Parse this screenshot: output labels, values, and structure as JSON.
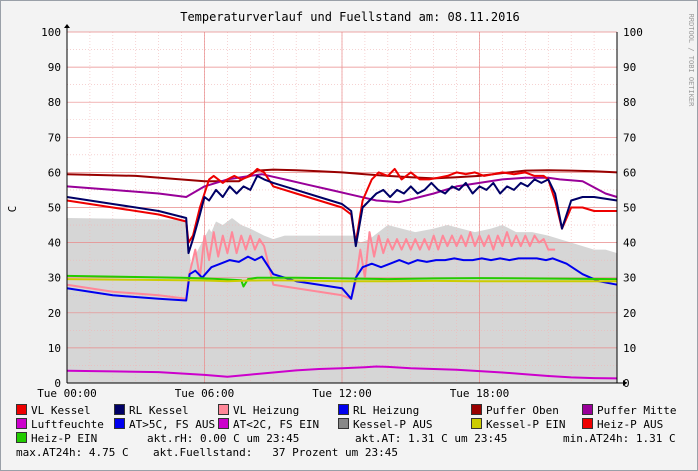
{
  "chart_data": {
    "type": "line",
    "title": "Temperaturverlauf und Fuellstand am: 08.11.2016",
    "ylabel": "C",
    "watermark": "RRDTOOL / TOBI OETIKER",
    "x_range_hours": [
      0,
      24
    ],
    "ylim": [
      0,
      100
    ],
    "y_ticks": [
      0,
      10,
      20,
      30,
      40,
      50,
      60,
      70,
      80,
      90,
      100
    ],
    "x_ticks": [
      {
        "hour": 0,
        "label": "Tue 00:00"
      },
      {
        "hour": 6,
        "label": "Tue 06:00"
      },
      {
        "hour": 12,
        "label": "Tue 12:00"
      },
      {
        "hour": 18,
        "label": "Tue 18:00"
      }
    ],
    "grid": true,
    "legend_position": "bottom",
    "series": [
      {
        "name": "Fuellstand (Prozent)",
        "color": "#d6d6d6",
        "style": "area",
        "x": [
          0,
          5.2,
          5.4,
          6.2,
          6.3,
          6.5,
          6.8,
          7.2,
          7.6,
          8.0,
          8.3,
          8.6,
          9.0,
          9.5,
          10,
          10.5,
          11,
          11.6,
          12.3,
          12.5,
          12.8,
          13.2,
          14,
          14.6,
          15.2,
          16,
          16.6,
          17.2,
          17.8,
          18.5,
          19,
          19.6,
          20.3,
          21,
          21.5,
          22,
          22.5,
          23,
          23.5,
          24
        ],
        "y": [
          47,
          46.5,
          34,
          44,
          43,
          46,
          45,
          47,
          45,
          44,
          43,
          42,
          41,
          42,
          42,
          42,
          42,
          42,
          42,
          42,
          40,
          41,
          45,
          44,
          43,
          44,
          45,
          44,
          43,
          44,
          45,
          43,
          43,
          42,
          41,
          40,
          39,
          38,
          38,
          37
        ]
      },
      {
        "name": "Puffer Oben",
        "color": "#990000",
        "x": [
          0,
          3,
          6,
          7.5,
          8.3,
          9,
          10,
          11,
          12,
          13,
          14,
          15,
          16,
          17,
          18,
          19,
          20,
          21,
          22,
          23,
          24
        ],
        "y": [
          59.5,
          59,
          57.5,
          57.5,
          60.5,
          60.8,
          60.6,
          60.3,
          60,
          59.5,
          59,
          58.6,
          58.3,
          58.6,
          59,
          59.8,
          60.5,
          60.6,
          60.5,
          60.3,
          60
        ]
      },
      {
        "name": "Puffer Mitte",
        "color": "#990099",
        "x": [
          0,
          2,
          4,
          5.2,
          6,
          7,
          8,
          8.5,
          9.5,
          10.5,
          11.5,
          12.5,
          13.5,
          14.5,
          16,
          17,
          18,
          19,
          20,
          21,
          21.5,
          22.5,
          23.5,
          24
        ],
        "y": [
          56,
          55,
          54,
          53,
          56,
          58,
          59,
          59.5,
          58,
          56.5,
          55,
          53.5,
          52,
          51.5,
          54,
          56,
          57,
          58,
          58.5,
          58.5,
          58,
          57.5,
          54,
          53
        ]
      },
      {
        "name": "VL Kessel",
        "color": "#ee0000",
        "x": [
          0,
          2,
          4,
          5.2,
          5.3,
          5.5,
          5.8,
          6.2,
          6.4,
          6.8,
          7.0,
          7.3,
          7.6,
          8.0,
          8.3,
          8.6,
          9,
          10,
          11,
          12,
          12.4,
          12.6,
          12.9,
          13.3,
          13.6,
          14,
          14.3,
          14.6,
          15,
          15.4,
          15.8,
          16.2,
          16.6,
          17,
          17.4,
          17.8,
          18.2,
          18.6,
          19,
          19.5,
          20,
          20.4,
          20.8,
          21.0,
          21.3,
          21.6,
          22,
          22.5,
          23,
          24
        ],
        "y": [
          52,
          50,
          48,
          46,
          40,
          42,
          50,
          58,
          59,
          57,
          58,
          59,
          58,
          59,
          61,
          60,
          56,
          54,
          52,
          50,
          48,
          40,
          52,
          58,
          60,
          59,
          61,
          58,
          60,
          58,
          58,
          58.5,
          59,
          60,
          59.5,
          60,
          59,
          59.5,
          60,
          59.5,
          60,
          59,
          59,
          58,
          52,
          44,
          50,
          50,
          49,
          49
        ]
      },
      {
        "name": "RL Kessel",
        "color": "#000066",
        "x": [
          0,
          2,
          4,
          5.2,
          5.3,
          5.5,
          5.8,
          6.0,
          6.2,
          6.5,
          6.8,
          7.1,
          7.4,
          7.7,
          8.0,
          8.3,
          8.6,
          9,
          10,
          11,
          12,
          12.4,
          12.6,
          12.9,
          13.2,
          13.5,
          13.8,
          14.1,
          14.4,
          14.7,
          15.0,
          15.3,
          15.6,
          15.9,
          16.2,
          16.5,
          16.8,
          17.1,
          17.4,
          17.7,
          18.0,
          18.3,
          18.6,
          18.9,
          19.2,
          19.5,
          19.8,
          20.1,
          20.4,
          20.7,
          21.0,
          21.3,
          21.6,
          22,
          22.5,
          23,
          24
        ],
        "y": [
          53,
          51,
          49,
          47,
          37,
          41,
          48,
          53,
          52,
          55,
          53,
          56,
          54,
          56,
          55,
          59,
          58,
          57,
          55,
          53,
          51,
          49,
          39,
          50,
          52,
          54,
          55,
          53,
          55,
          54,
          56,
          54,
          55,
          57,
          55,
          54,
          56,
          55,
          57,
          54,
          56,
          55,
          57,
          54,
          56,
          55,
          57,
          56,
          58,
          57,
          58,
          54,
          44,
          52,
          53,
          53,
          52
        ]
      },
      {
        "name": "VL Heizung",
        "color": "#ff8899",
        "x": [
          0,
          2,
          4,
          5.2,
          5.3,
          5.6,
          5.8,
          6.0,
          6.2,
          6.4,
          6.6,
          6.8,
          7.0,
          7.2,
          7.4,
          7.6,
          7.8,
          8.0,
          8.2,
          8.4,
          8.6,
          9,
          10,
          11,
          12,
          12.4,
          12.6,
          12.8,
          13.0,
          13.2,
          13.4,
          13.6,
          13.8,
          14.0,
          14.2,
          14.4,
          14.6,
          14.8,
          15.0,
          15.2,
          15.4,
          15.6,
          15.8,
          16.0,
          16.2,
          16.4,
          16.6,
          16.8,
          17.0,
          17.2,
          17.4,
          17.6,
          17.8,
          18.0,
          18.2,
          18.4,
          18.6,
          18.8,
          19.0,
          19.2,
          19.4,
          19.6,
          19.8,
          20.0,
          20.2,
          20.4,
          20.6,
          20.8,
          21.0,
          21.3
        ],
        "y": [
          28,
          26,
          25,
          24,
          30,
          38,
          30,
          42,
          35,
          43,
          36,
          42,
          37,
          43,
          37,
          42,
          38,
          42,
          38,
          41,
          39,
          28,
          27,
          26,
          25,
          24,
          29,
          38,
          30,
          43,
          36,
          42,
          37,
          41,
          38,
          41,
          38,
          41,
          38,
          41,
          38,
          41,
          38,
          42,
          38,
          42,
          39,
          42,
          39,
          42,
          39,
          43,
          39,
          42,
          39,
          42,
          38,
          42,
          39,
          43,
          39,
          42,
          39,
          42,
          39,
          42,
          40,
          41,
          38,
          38
        ]
      },
      {
        "name": "RL Heizung",
        "color": "#0000ee",
        "x": [
          0,
          2,
          4,
          5.2,
          5.35,
          5.6,
          5.9,
          6.3,
          6.7,
          7.1,
          7.5,
          7.9,
          8.2,
          8.5,
          9,
          10,
          11,
          12,
          12.4,
          12.6,
          12.9,
          13.3,
          13.7,
          14.1,
          14.5,
          14.9,
          15.3,
          15.7,
          16.1,
          16.5,
          16.9,
          17.3,
          17.7,
          18.1,
          18.5,
          18.9,
          19.3,
          19.7,
          20.1,
          20.5,
          20.9,
          21.2,
          21.8,
          22.5,
          23.2,
          24
        ],
        "y": [
          27,
          25,
          24,
          23.5,
          31,
          32,
          30,
          33,
          34,
          35,
          34.5,
          36,
          35,
          36,
          31,
          29,
          28,
          27,
          24,
          30,
          33,
          34,
          33,
          34,
          35,
          34,
          35,
          34.5,
          35,
          35,
          35.5,
          35,
          35,
          35.5,
          35,
          35.5,
          35,
          35.5,
          35.5,
          35.5,
          35,
          35.5,
          34,
          31,
          29,
          28
        ]
      },
      {
        "name": "Heiz-P EIN",
        "color": "#22cc00",
        "x": [
          0,
          3,
          5,
          6,
          7,
          7.6,
          7.7,
          7.9,
          8.3,
          9,
          10,
          12,
          14,
          16,
          18,
          20,
          22,
          24
        ],
        "y": [
          30.5,
          30.2,
          30,
          29.8,
          29.5,
          29.3,
          27.5,
          29.6,
          30,
          30,
          30,
          29.8,
          29.6,
          29.8,
          29.9,
          29.8,
          29.7,
          29.6
        ]
      },
      {
        "name": "Kessel-P EIN",
        "color": "#cccc00",
        "x": [
          0,
          3,
          5,
          6,
          7,
          8,
          9,
          10,
          12,
          14,
          16,
          18,
          20,
          22,
          24
        ],
        "y": [
          29.6,
          29.4,
          29.3,
          29.2,
          29,
          29.2,
          29.3,
          29.2,
          29,
          29,
          29.1,
          29,
          29,
          29,
          29
        ]
      },
      {
        "name": "Luftfeuchte",
        "color": "#cc00cc",
        "x": [
          0,
          2,
          4,
          6,
          7,
          8,
          9,
          10,
          11,
          12,
          13,
          13.5,
          14,
          15,
          16,
          17,
          18,
          19,
          20,
          21,
          22,
          23,
          24
        ],
        "y": [
          3.5,
          3.3,
          3.1,
          2.3,
          1.8,
          2.4,
          3,
          3.6,
          4,
          4.2,
          4.5,
          4.7,
          4.6,
          4.2,
          4,
          3.8,
          3.4,
          3,
          2.5,
          2,
          1.6,
          1.4,
          1.3
        ]
      }
    ]
  },
  "legend": {
    "rows": [
      [
        {
          "label": "VL Kessel",
          "color": "#ee0000"
        },
        {
          "label": "RL Kessel",
          "color": "#000066"
        },
        {
          "label": "VL Heizung",
          "color": "#ff8899"
        },
        {
          "label": "RL Heizung",
          "color": "#0000ee"
        },
        {
          "label": "Puffer Oben",
          "color": "#990000"
        },
        {
          "label": "Puffer Mitte",
          "color": "#990099"
        }
      ],
      [
        {
          "label": "Luftfeuchte",
          "color": "#cc00cc"
        },
        {
          "label": "AT>5C, FS AUS",
          "color": "#0000ee"
        },
        {
          "label": "AT<2C, FS EIN",
          "color": "#cc00cc"
        },
        {
          "label": "Kessel-P AUS",
          "color": "#888888"
        },
        {
          "label": "Kessel-P EIN",
          "color": "#cccc00"
        },
        {
          "label": "Heiz-P AUS",
          "color": "#ee0000"
        }
      ]
    ],
    "heizp": {
      "label": "Heiz-P EIN",
      "color": "#22cc00"
    }
  },
  "status": {
    "rh": "akt.rH: 0.00 C um 23:45",
    "at": "akt.AT: 1.31 C um 23:45",
    "min_at": "min.AT24h: 1.31 C",
    "max_at": "max.AT24h: 4.75 C",
    "fuellstand": "akt.Fuellstand:   37 Prozent um 23:45"
  }
}
